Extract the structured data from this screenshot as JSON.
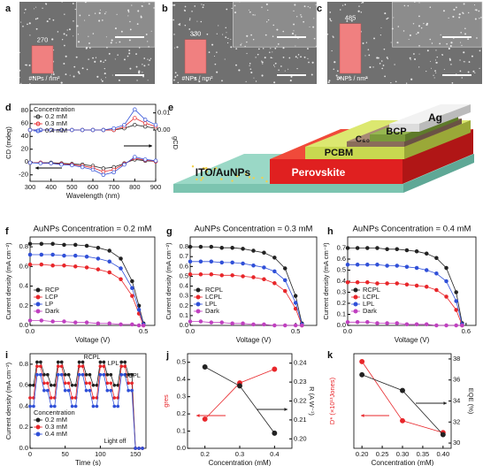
{
  "chart_data": [
    {
      "type": "bar",
      "label": "a",
      "categories": [
        "#NPs / nm²"
      ],
      "values": [
        270
      ],
      "color": "#f08080",
      "ylim": [
        0,
        500
      ]
    },
    {
      "type": "bar",
      "label": "b",
      "categories": [
        "#NPs / nm²"
      ],
      "values": [
        330
      ],
      "color": "#f08080",
      "ylim": [
        0,
        500
      ]
    },
    {
      "type": "bar",
      "label": "c",
      "categories": [
        "#NPs / nm²"
      ],
      "values": [
        485
      ],
      "color": "#f08080",
      "ylim": [
        0,
        500
      ]
    },
    {
      "type": "line",
      "label": "d",
      "xlabel": "Wavelength (nm)",
      "ylabel": "CD (mdeg)",
      "y2label": "gCD",
      "marker": "open",
      "x": [
        300,
        350,
        400,
        450,
        500,
        550,
        600,
        650,
        700,
        750,
        800,
        850,
        900
      ],
      "xlim": [
        300,
        900
      ],
      "xticks": [
        300,
        400,
        500,
        600,
        700,
        800,
        900
      ],
      "ylim": [
        -30,
        90
      ],
      "yticks": [
        -20,
        0,
        20,
        40,
        60,
        80
      ],
      "y2lim": [
        -0.03,
        0.015
      ],
      "y2ticks": [
        {
          "value": 0,
          "label": "0.00"
        },
        0.01
      ],
      "legend": "upper left",
      "legend_title": "Concentration",
      "series": [
        {
          "name": "0.2 mM",
          "color": "#222222",
          "axis": "y2",
          "values": [
            0,
            0,
            0,
            0,
            0,
            0,
            0,
            0,
            0,
            0.001,
            0.003,
            0.002,
            0.001
          ]
        },
        {
          "name": "0.3 mM",
          "color": "#e8262a",
          "axis": "y2",
          "values": [
            0,
            0,
            0,
            0,
            0,
            0,
            0,
            0,
            0,
            0.002,
            0.007,
            0.004,
            0.002
          ]
        },
        {
          "name": "0.4 mM",
          "color": "#3050d8",
          "axis": "y2",
          "values": [
            0,
            0,
            0,
            0,
            0,
            0,
            0,
            0,
            0.001,
            0.003,
            0.012,
            0.006,
            0.003
          ]
        },
        {
          "color": "#222222",
          "values": [
            -1,
            -1,
            -1,
            -2,
            -3,
            -4,
            -6,
            -10,
            -8,
            -2,
            4,
            2,
            1
          ]
        },
        {
          "color": "#e8262a",
          "values": [
            -1,
            -1,
            -2,
            -3,
            -4,
            -6,
            -9,
            -15,
            -12,
            -3,
            6,
            3,
            1
          ]
        },
        {
          "color": "#3050d8",
          "values": [
            -1,
            -2,
            -2,
            -4,
            -5,
            -8,
            -12,
            -20,
            -16,
            -4,
            8,
            4,
            2
          ]
        }
      ]
    },
    {
      "type": "line",
      "label": "f",
      "title": "AuNPs Concentration = 0.2 mM",
      "xlabel": "Voltage (V)",
      "ylabel": "Current density (mA cm⁻²)",
      "marker": "filled",
      "x": [
        0,
        0.05,
        0.1,
        0.15,
        0.2,
        0.25,
        0.3,
        0.35,
        0.4,
        0.45,
        0.48,
        0.5
      ],
      "xlim": [
        0,
        0.55
      ],
      "xticks": [
        {
          "value": 0,
          "label": "0.0"
        },
        0.5
      ],
      "ylim": [
        0,
        0.9
      ],
      "yticks": [
        {
          "value": 0,
          "label": "0.0"
        },
        0.2,
        0.4,
        0.6,
        0.8
      ],
      "legend": "lower left",
      "series": [
        {
          "name": "RCP",
          "color": "#222222",
          "values": [
            0.83,
            0.83,
            0.83,
            0.82,
            0.82,
            0.81,
            0.79,
            0.76,
            0.68,
            0.45,
            0.2,
            0.02
          ]
        },
        {
          "name": "LCP",
          "color": "#e8262a",
          "values": [
            0.62,
            0.62,
            0.61,
            0.61,
            0.6,
            0.59,
            0.57,
            0.54,
            0.47,
            0.3,
            0.12,
            0
          ]
        },
        {
          "name": "LP",
          "color": "#3050d8",
          "values": [
            0.72,
            0.72,
            0.72,
            0.71,
            0.71,
            0.7,
            0.68,
            0.65,
            0.58,
            0.38,
            0.16,
            0.01
          ]
        },
        {
          "name": "Dark",
          "color": "#c040c0",
          "values": [
            0.05,
            0.05,
            0.04,
            0.04,
            0.03,
            0.03,
            0.02,
            0.02,
            0.01,
            0.01,
            0,
            0
          ]
        }
      ]
    },
    {
      "type": "line",
      "label": "g",
      "title": "AuNPs Concentration = 0.3 mM",
      "xlabel": "Voltage (V)",
      "ylabel": "Current density (mA cm⁻²)",
      "marker": "filled",
      "x": [
        0,
        0.05,
        0.1,
        0.15,
        0.2,
        0.25,
        0.3,
        0.35,
        0.4,
        0.45,
        0.5,
        0.53
      ],
      "xlim": [
        0,
        0.6
      ],
      "xticks": [
        {
          "value": 0,
          "label": "0.0"
        },
        0.5
      ],
      "ylim": [
        0,
        0.9
      ],
      "yticks": [
        {
          "value": 0,
          "label": "0.0"
        },
        0.1,
        0.2,
        0.3,
        0.4,
        0.5,
        0.6,
        0.7,
        0.8
      ],
      "legend": "lower left",
      "series": [
        {
          "name": "RCPL",
          "color": "#222222",
          "values": [
            0.8,
            0.8,
            0.8,
            0.79,
            0.79,
            0.78,
            0.76,
            0.74,
            0.69,
            0.58,
            0.3,
            0.02
          ]
        },
        {
          "name": "LCPL",
          "color": "#e8262a",
          "values": [
            0.52,
            0.52,
            0.52,
            0.51,
            0.51,
            0.5,
            0.49,
            0.47,
            0.43,
            0.35,
            0.17,
            0
          ]
        },
        {
          "name": "LPL",
          "color": "#3050d8",
          "values": [
            0.65,
            0.65,
            0.65,
            0.64,
            0.64,
            0.63,
            0.61,
            0.59,
            0.55,
            0.46,
            0.23,
            0.01
          ]
        },
        {
          "name": "Dark",
          "color": "#c040c0",
          "values": [
            0.04,
            0.04,
            0.03,
            0.03,
            0.02,
            0.02,
            0.01,
            0.01,
            0,
            0,
            0,
            0
          ]
        }
      ]
    },
    {
      "type": "line",
      "label": "h",
      "title": "AuNPs Concentration = 0.4 mM",
      "xlabel": "Voltage (V)",
      "ylabel": "Current density (mA cm⁻²)",
      "marker": "filled",
      "x": [
        0,
        0.05,
        0.1,
        0.15,
        0.2,
        0.25,
        0.3,
        0.35,
        0.4,
        0.45,
        0.5,
        0.55,
        0.58
      ],
      "xlim": [
        0,
        0.65
      ],
      "xticks": [
        {
          "value": 0,
          "label": "0.0"
        },
        0.6
      ],
      "ylim": [
        0,
        0.8
      ],
      "yticks": [
        {
          "value": 0,
          "label": "0.0"
        },
        0.1,
        0.2,
        0.3,
        0.4,
        0.5,
        0.6,
        0.7
      ],
      "legend": "lower left",
      "series": [
        {
          "name": "RCPL",
          "color": "#222222",
          "values": [
            0.7,
            0.7,
            0.7,
            0.7,
            0.69,
            0.69,
            0.68,
            0.67,
            0.65,
            0.61,
            0.52,
            0.3,
            0.02
          ]
        },
        {
          "name": "LCPL",
          "color": "#e8262a",
          "values": [
            0.39,
            0.39,
            0.39,
            0.38,
            0.38,
            0.38,
            0.37,
            0.36,
            0.35,
            0.32,
            0.26,
            0.14,
            0
          ]
        },
        {
          "name": "LPL",
          "color": "#3050d8",
          "values": [
            0.55,
            0.55,
            0.55,
            0.55,
            0.54,
            0.54,
            0.53,
            0.52,
            0.5,
            0.47,
            0.4,
            0.22,
            0.01
          ]
        },
        {
          "name": "Dark",
          "color": "#c040c0",
          "values": [
            0.03,
            0.03,
            0.03,
            0.02,
            0.02,
            0.02,
            0.01,
            0.01,
            0.01,
            0,
            0,
            0,
            0
          ]
        }
      ]
    },
    {
      "type": "line",
      "label": "i",
      "xlabel": "Time (s)",
      "ylabel": "Current density (mA cm⁻²)",
      "marker": "filled",
      "x": [
        0,
        5,
        10,
        15,
        20,
        25,
        30,
        35,
        40,
        45,
        50,
        55,
        60,
        65,
        70,
        75,
        80,
        85,
        90,
        95,
        100,
        105,
        110,
        115,
        120,
        125,
        130,
        135,
        140,
        145,
        150,
        155,
        160
      ],
      "xlim": [
        0,
        165
      ],
      "xticks": [
        0,
        50,
        100,
        150
      ],
      "ylim": [
        0,
        0.9
      ],
      "yticks": [
        {
          "value": 0,
          "label": "0.0"
        },
        0.2,
        0.4,
        0.6,
        0.8
      ],
      "legend": "lower left",
      "legend_title": "Concentration",
      "annotations": [
        "RCPL",
        "LPL",
        "LCPL",
        "Light off"
      ],
      "series": [
        {
          "name": "0.2 mM",
          "color": "#222222",
          "values": [
            0.6,
            0.6,
            0.82,
            0.82,
            0.7,
            0.7,
            0.6,
            0.6,
            0.82,
            0.82,
            0.7,
            0.7,
            0.6,
            0.6,
            0.82,
            0.82,
            0.7,
            0.7,
            0.6,
            0.6,
            0.82,
            0.82,
            0.7,
            0.7,
            0.6,
            0.6,
            0.82,
            0.82,
            0.7,
            0.7,
            0,
            0,
            0
          ]
        },
        {
          "name": "0.3 mM",
          "color": "#e8262a",
          "values": [
            0.48,
            0.48,
            0.78,
            0.78,
            0.62,
            0.62,
            0.48,
            0.48,
            0.78,
            0.78,
            0.62,
            0.62,
            0.48,
            0.48,
            0.78,
            0.78,
            0.62,
            0.62,
            0.48,
            0.48,
            0.78,
            0.78,
            0.62,
            0.62,
            0.48,
            0.48,
            0.78,
            0.78,
            0.62,
            0.62,
            0,
            0,
            0
          ]
        },
        {
          "name": "0.4 mM",
          "color": "#3050d8",
          "values": [
            0.4,
            0.4,
            0.7,
            0.7,
            0.55,
            0.55,
            0.4,
            0.4,
            0.7,
            0.7,
            0.55,
            0.55,
            0.4,
            0.4,
            0.7,
            0.7,
            0.55,
            0.55,
            0.4,
            0.4,
            0.7,
            0.7,
            0.55,
            0.55,
            0.4,
            0.4,
            0.7,
            0.7,
            0.55,
            0.55,
            0,
            0,
            0
          ]
        }
      ]
    },
    {
      "type": "line",
      "label": "j",
      "xlabel": "Concentration (mM)",
      "ylabel": "gres",
      "y2label": "R (A W⁻¹)",
      "marker": "filled",
      "x": [
        0.2,
        0.3,
        0.4
      ],
      "xlim": [
        0.15,
        0.45
      ],
      "xticks": [
        0.2,
        0.3,
        0.4
      ],
      "ylim": [
        0,
        0.55
      ],
      "yticks": [
        {
          "value": 0,
          "label": "0.0"
        },
        0.1,
        0.2,
        0.3,
        0.4,
        0.5
      ],
      "y2lim": [
        0.195,
        0.245
      ],
      "y2ticks": [
        {
          "value": 0.2,
          "label": "0.20"
        },
        0.21,
        0.22,
        0.23,
        0.24
      ],
      "series": [
        {
          "color": "#e8262a",
          "values": [
            0.17,
            0.38,
            0.46
          ]
        },
        {
          "color": "#222222",
          "axis": "y2",
          "values": [
            0.238,
            0.228,
            0.203
          ]
        }
      ]
    },
    {
      "type": "line",
      "label": "k",
      "xlabel": "Concentration (mM)",
      "ylabel": "D* (×10¹³Jones)",
      "y2label": "EQE (%)",
      "marker": "filled",
      "x": [
        0.2,
        0.3,
        0.4
      ],
      "xlim": [
        0.18,
        0.42
      ],
      "xticks": [
        {
          "value": 0.2,
          "label": "0.20"
        },
        0.25,
        {
          "value": 0.3,
          "label": "0.30"
        },
        0.35,
        {
          "value": 0.4,
          "label": "0.40"
        }
      ],
      "ylim": [
        0,
        1.2
      ],
      "y2lim": [
        29.5,
        38.5
      ],
      "y2ticks": [
        30,
        32,
        34,
        36,
        38
      ],
      "series": [
        {
          "color": "#e8262a",
          "values": [
            1.1,
            0.35,
            0.2
          ]
        },
        {
          "color": "#222222",
          "axis": "y2",
          "values": [
            36.5,
            35,
            30.8
          ]
        }
      ]
    }
  ],
  "diagram": {
    "label": "e",
    "layers": [
      "Ag",
      "BCP",
      "C₆₀",
      "PCBM",
      "Perovskite",
      "ITO/AuNPs"
    ]
  }
}
